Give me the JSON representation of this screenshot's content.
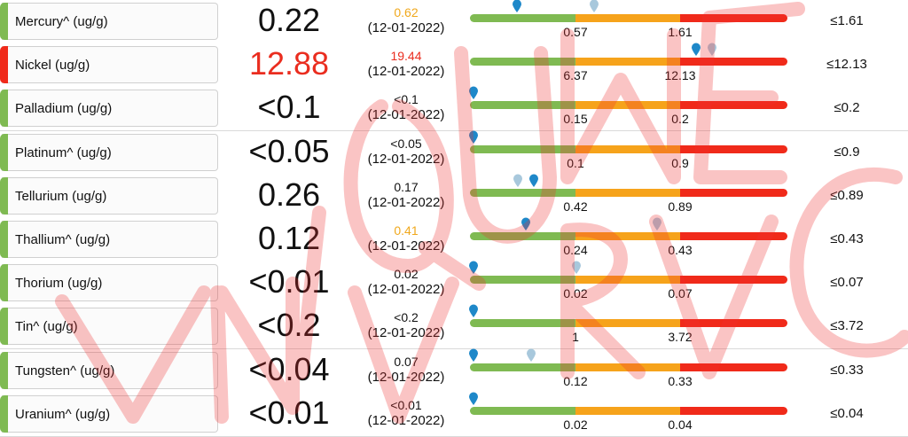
{
  "colors": {
    "green": "#7fba52",
    "orange": "#f6a31b",
    "red": "#f02a1a",
    "pin_current": "#1e88c9",
    "pin_previous": "#a8c8dc",
    "prev_value_normal": "#111111",
    "prev_value_orange": "#f0a81c",
    "prev_value_red": "#ea2d1f"
  },
  "watermark": {
    "icon": "watermark-text"
  },
  "rows": [
    {
      "name": "Mercury^ (ug/g)",
      "status": "green",
      "value": "0.22",
      "value_color": "#111111",
      "prev_value": "0.62",
      "prev_color": "#f0a81c",
      "prev_date": "(12-01-2022)",
      "tick1": "0.57",
      "tick2": "1.61",
      "ref": "≤1.61",
      "pin_current": 0.148,
      "pin_previous": 0.39
    },
    {
      "name": "Nickel (ug/g)",
      "status": "red",
      "value": "12.88",
      "value_color": "#ea2d1f",
      "prev_value": "19.44",
      "prev_color": "#ea2d1f",
      "prev_date": "(12-01-2022)",
      "tick1": "6.37",
      "tick2": "12.13",
      "ref": "≤12.13",
      "pin_current": 0.713,
      "pin_previous": 0.762
    },
    {
      "name": "Palladium (ug/g)",
      "status": "green",
      "value": "<0.1",
      "value_color": "#111111",
      "prev_value": "<0.1",
      "prev_color": "#111111",
      "prev_date": "(12-01-2022)",
      "tick1": "0.15",
      "tick2": "0.2",
      "ref": "≤0.2",
      "pin_current": 0.01,
      "pin_previous": null
    },
    {
      "name": "Platinum^ (ug/g)",
      "status": "green",
      "value": "<0.05",
      "value_color": "#111111",
      "prev_value": "<0.05",
      "prev_color": "#111111",
      "prev_date": "(12-01-2022)",
      "tick1": "0.1",
      "tick2": "0.9",
      "ref": "≤0.9",
      "pin_current": 0.01,
      "pin_previous": null
    },
    {
      "name": "Tellurium (ug/g)",
      "status": "green",
      "value": "0.26",
      "value_color": "#111111",
      "prev_value": "0.17",
      "prev_color": "#111111",
      "prev_date": "(12-01-2022)",
      "tick1": "0.42",
      "tick2": "0.89",
      "ref": "≤0.89",
      "pin_current": 0.2,
      "pin_previous": 0.15
    },
    {
      "name": "Thallium^ (ug/g)",
      "status": "green",
      "value": "0.12",
      "value_color": "#111111",
      "prev_value": "0.41",
      "prev_color": "#f0a81c",
      "prev_date": "(12-01-2022)",
      "tick1": "0.24",
      "tick2": "0.43",
      "ref": "≤0.43",
      "pin_current": 0.176,
      "pin_previous": 0.59
    },
    {
      "name": "Thorium (ug/g)",
      "status": "green",
      "value": "<0.01",
      "value_color": "#111111",
      "prev_value": "0.02",
      "prev_color": "#111111",
      "prev_date": "(12-01-2022)",
      "tick1": "0.02",
      "tick2": "0.07",
      "ref": "≤0.07",
      "pin_current": 0.01,
      "pin_previous": 0.335
    },
    {
      "name": "Tin^ (ug/g)",
      "status": "green",
      "value": "<0.2",
      "value_color": "#111111",
      "prev_value": "<0.2",
      "prev_color": "#111111",
      "prev_date": "(12-01-2022)",
      "tick1": "1",
      "tick2": "3.72",
      "ref": "≤3.72",
      "pin_current": 0.01,
      "pin_previous": null
    },
    {
      "name": "Tungsten^ (ug/g)",
      "status": "green",
      "value": "<0.04",
      "value_color": "#111111",
      "prev_value": "0.07",
      "prev_color": "#111111",
      "prev_date": "(12-01-2022)",
      "tick1": "0.12",
      "tick2": "0.33",
      "ref": "≤0.33",
      "pin_current": 0.01,
      "pin_previous": 0.193
    },
    {
      "name": "Uranium^ (ug/g)",
      "status": "green",
      "value": "<0.01",
      "value_color": "#111111",
      "prev_value": "<0.01",
      "prev_color": "#111111",
      "prev_date": "(12-01-2022)",
      "tick1": "0.02",
      "tick2": "0.04",
      "ref": "≤0.04",
      "pin_current": 0.01,
      "pin_previous": null
    }
  ]
}
